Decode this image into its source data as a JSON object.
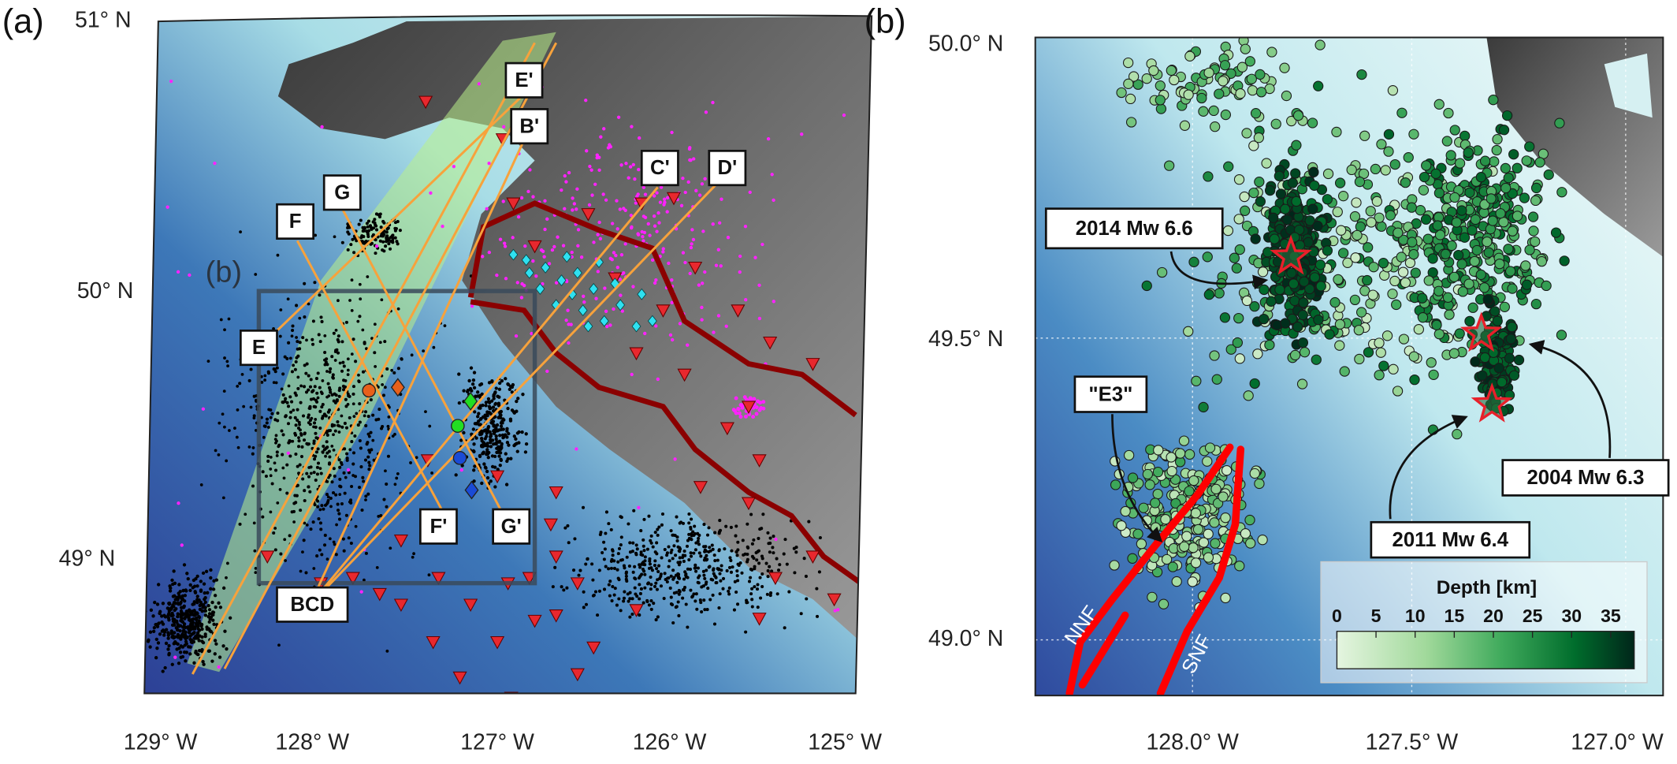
{
  "panel_a": {
    "label": "(a)",
    "inset_label": "(b)",
    "lat_labels": [
      "51° N",
      "50° N",
      "49° N"
    ],
    "lon_labels": [
      "129° W",
      "128° W",
      "127° W",
      "126° W",
      "125° W"
    ],
    "profile_labels": [
      "E'",
      "B'",
      "C'",
      "D'",
      "G",
      "F",
      "E",
      "F'",
      "G'",
      "BCD"
    ]
  },
  "panel_b": {
    "label": "(b)",
    "lat_labels": [
      "50.0° N",
      "49.5° N",
      "49.0° N"
    ],
    "lon_labels": [
      "128.0° W",
      "127.5° W",
      "127.0° W"
    ],
    "events": [
      "2014 Mw 6.6",
      "\"E3\"",
      "2004 Mw 6.3",
      "2011 Mw 6.4"
    ],
    "faults": [
      "NNF",
      "SNF"
    ],
    "colorbar": {
      "title": "Depth [km]",
      "lim": [
        0,
        38
      ],
      "ticks": [
        0,
        5,
        10,
        15,
        20,
        25,
        30,
        35
      ]
    }
  }
}
